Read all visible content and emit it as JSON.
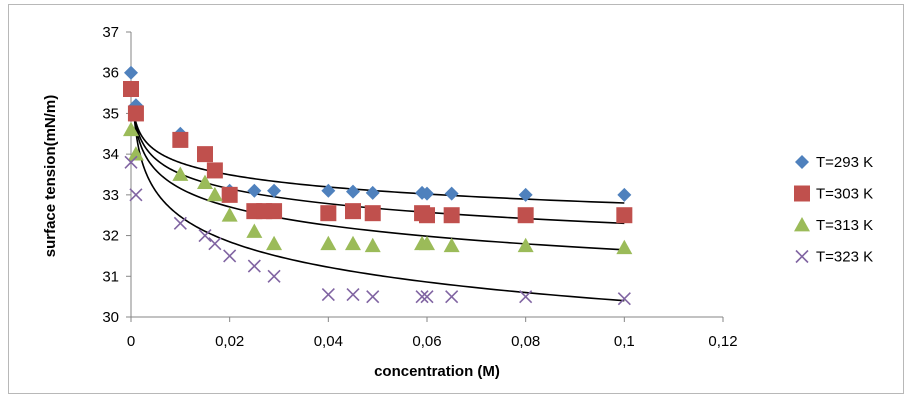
{
  "chart_data": {
    "type": "scatter",
    "title": "",
    "xlabel": "concentration (M)",
    "ylabel": "surface tension(mN/m)",
    "xlim": [
      0,
      0.12
    ],
    "ylim": [
      30,
      37
    ],
    "x_ticks": [
      "0",
      "0,02",
      "0,04",
      "0,06",
      "0,08",
      "0,1",
      "0,12"
    ],
    "y_ticks": [
      "30",
      "31",
      "32",
      "33",
      "34",
      "35",
      "36",
      "37"
    ],
    "grid": false,
    "legend_position": "right",
    "series": [
      {
        "name": "T=293 K",
        "marker": "diamond",
        "color": "#4F81BD",
        "x": [
          0,
          0.001,
          0.01,
          0.017,
          0.02,
          0.025,
          0.029,
          0.04,
          0.045,
          0.049,
          0.059,
          0.06,
          0.065,
          0.08,
          0.1
        ],
        "y": [
          36.0,
          35.2,
          34.5,
          33.6,
          33.1,
          33.1,
          33.1,
          33.1,
          33.08,
          33.05,
          33.05,
          33.03,
          33.03,
          33.0,
          33.0
        ]
      },
      {
        "name": "T=303 K",
        "marker": "square",
        "color": "#C0504D",
        "x": [
          0,
          0.001,
          0.01,
          0.015,
          0.017,
          0.02,
          0.025,
          0.027,
          0.029,
          0.04,
          0.045,
          0.049,
          0.059,
          0.06,
          0.065,
          0.08,
          0.1
        ],
        "y": [
          35.6,
          35.0,
          34.35,
          34.0,
          33.6,
          33.0,
          32.6,
          32.6,
          32.6,
          32.55,
          32.6,
          32.55,
          32.55,
          32.5,
          32.5,
          32.5,
          32.5
        ]
      },
      {
        "name": "T=313 K",
        "marker": "triangle",
        "color": "#9BBB59",
        "x": [
          0,
          0.001,
          0.01,
          0.015,
          0.017,
          0.02,
          0.025,
          0.029,
          0.04,
          0.045,
          0.049,
          0.059,
          0.06,
          0.065,
          0.08,
          0.1
        ],
        "y": [
          34.6,
          34.0,
          33.5,
          33.3,
          33.0,
          32.5,
          32.1,
          31.8,
          31.8,
          31.8,
          31.75,
          31.8,
          31.8,
          31.75,
          31.75,
          31.7
        ]
      },
      {
        "name": "T=323 K",
        "marker": "x",
        "color": "#8064A2",
        "x": [
          0,
          0.001,
          0.01,
          0.015,
          0.017,
          0.02,
          0.025,
          0.029,
          0.04,
          0.045,
          0.049,
          0.059,
          0.06,
          0.065,
          0.08,
          0.1
        ],
        "y": [
          33.8,
          33.0,
          32.3,
          32.0,
          31.8,
          31.5,
          31.25,
          31.0,
          30.55,
          30.55,
          30.5,
          30.5,
          30.5,
          30.5,
          30.5,
          30.45
        ]
      }
    ],
    "trendlines": [
      {
        "series": "T=293 K",
        "type": "logarithmic",
        "color": "#000000",
        "x0": 0.0006,
        "y_start": 35.0,
        "y_at_0_1": 32.8
      },
      {
        "series": "T=303 K",
        "type": "logarithmic",
        "color": "#000000",
        "x0": 0.0006,
        "y_start": 35.0,
        "y_at_0_1": 32.3
      },
      {
        "series": "T=313 K",
        "type": "logarithmic",
        "color": "#000000",
        "x0": 0.0006,
        "y_start": 35.0,
        "y_at_0_1": 31.65
      },
      {
        "series": "T=323 K",
        "type": "logarithmic",
        "color": "#000000",
        "x0": 0.0006,
        "y_start": 35.0,
        "y_at_0_1": 30.4
      }
    ]
  }
}
